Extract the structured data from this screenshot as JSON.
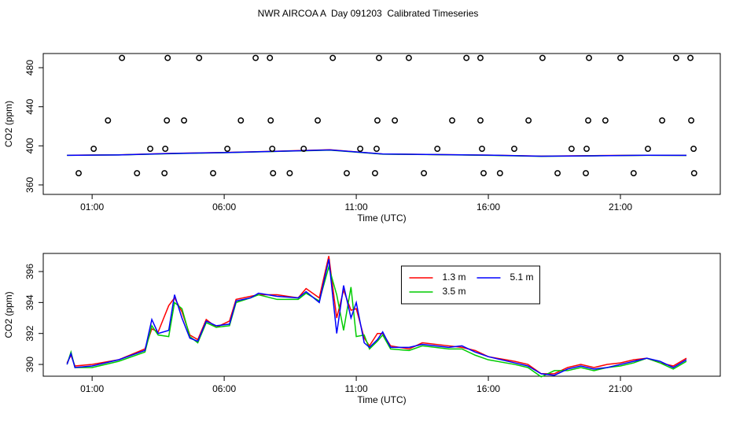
{
  "title": "NWR AIRCOA A  Day 091203  Calibrated Timeseries",
  "chart_data": [
    {
      "type": "scatter",
      "xlabel": "Time (UTC)",
      "ylabel": "CO2 (ppm)",
      "xlim": [
        -0.85,
        24.78
      ],
      "xticks": [
        {
          "value": 1,
          "label": "01:00"
        },
        {
          "value": 6,
          "label": "06:00"
        },
        {
          "value": 11,
          "label": "11:00"
        },
        {
          "value": 16,
          "label": "16:00"
        },
        {
          "value": 21,
          "label": "21:00"
        }
      ],
      "ylim": [
        350.3,
        494.5
      ],
      "yticks": [
        360,
        400,
        440,
        480
      ],
      "color": "#000000",
      "x": [
        2.13,
        3.86,
        5.05,
        7.19,
        7.73,
        10.11,
        11.86,
        12.99,
        15.17,
        15.7,
        18.05,
        19.81,
        21.0,
        23.11,
        23.65,
        1.6,
        3.83,
        4.48,
        6.63,
        7.76,
        9.54,
        11.8,
        12.46,
        14.63,
        15.7,
        17.52,
        19.78,
        20.43,
        22.58,
        23.68,
        1.06,
        3.2,
        3.77,
        6.12,
        7.82,
        9.01,
        11.15,
        11.77,
        14.07,
        15.76,
        16.98,
        19.15,
        19.72,
        22.04,
        23.77,
        0.49,
        2.7,
        3.74,
        5.58,
        7.85,
        8.48,
        10.64,
        11.71,
        13.56,
        15.82,
        16.44,
        18.62,
        19.69,
        21.5,
        23.79
      ],
      "values": [
        490,
        490,
        490,
        490,
        490,
        490,
        490,
        490,
        490,
        490,
        490,
        490,
        490,
        490,
        490,
        426,
        426,
        426,
        426,
        426,
        426,
        426,
        426,
        426,
        426,
        426,
        426,
        426,
        426,
        426,
        397,
        397,
        397,
        397,
        397,
        397,
        397,
        397,
        397,
        397,
        397,
        397,
        397,
        397,
        397,
        372,
        372,
        372,
        372,
        372,
        372,
        372,
        372,
        372,
        372,
        372,
        372,
        372,
        372,
        372
      ],
      "series": [
        {
          "color": "#ff0000",
          "x": [
            0.05,
            2,
            4,
            6,
            8,
            10,
            12,
            14,
            16,
            18,
            20,
            22,
            23.5
          ],
          "values": [
            390.4,
            390.8,
            392.3,
            393.2,
            394.5,
            396.0,
            391.6,
            391.1,
            390.5,
            389.5,
            390.0,
            390.4,
            390.3
          ]
        },
        {
          "color": "#00cc00",
          "x": [
            0.05,
            2,
            4,
            6,
            8,
            10,
            12,
            14,
            16,
            18,
            20,
            22,
            23.5
          ],
          "values": [
            390.3,
            390.7,
            392.0,
            393.0,
            394.3,
            395.6,
            391.5,
            391.0,
            390.3,
            389.3,
            389.8,
            390.3,
            390.2
          ]
        },
        {
          "color": "#0000ff",
          "x": [
            0.05,
            2,
            4,
            6,
            8,
            10,
            12,
            14,
            16,
            18,
            20,
            22,
            23.5
          ],
          "values": [
            390.3,
            390.7,
            392.2,
            393.1,
            394.4,
            395.8,
            391.7,
            391.1,
            390.5,
            389.4,
            389.8,
            390.4,
            390.3
          ]
        }
      ]
    },
    {
      "type": "line",
      "xlabel": "Time (UTC)",
      "ylabel": "CO2 (ppm)",
      "xlim": [
        -0.85,
        24.78
      ],
      "xticks": [
        {
          "value": 1,
          "label": "01:00"
        },
        {
          "value": 6,
          "label": "06:00"
        },
        {
          "value": 11,
          "label": "11:00"
        },
        {
          "value": 16,
          "label": "16:00"
        },
        {
          "value": 21,
          "label": "21:00"
        }
      ],
      "ylim": [
        389.24,
        397.17
      ],
      "yticks": [
        390,
        392,
        394,
        396
      ],
      "legend": "top",
      "x": [
        0.05,
        0.2,
        0.35,
        1.0,
        2.0,
        3.0,
        3.26,
        3.5,
        3.9,
        4.12,
        4.4,
        4.7,
        5.0,
        5.32,
        5.7,
        6.2,
        6.45,
        7.0,
        7.3,
        8.0,
        8.8,
        9.1,
        9.6,
        9.96,
        10.26,
        10.52,
        10.8,
        11.0,
        11.3,
        11.5,
        11.8,
        12.0,
        12.3,
        13.0,
        13.5,
        14.5,
        15.0,
        15.5,
        16.0,
        17.0,
        17.5,
        18.0,
        18.5,
        19.0,
        19.5,
        20.0,
        20.5,
        21.0,
        21.5,
        22.0,
        22.5,
        23.0,
        23.5
      ],
      "series": [
        {
          "name": "1.3 m",
          "color": "#ff0000",
          "values": [
            390.1,
            390.6,
            389.9,
            390.0,
            390.3,
            391.0,
            392.3,
            392.1,
            393.8,
            394.3,
            393.4,
            391.9,
            391.6,
            392.9,
            392.4,
            392.8,
            394.2,
            394.4,
            394.5,
            394.5,
            394.3,
            394.9,
            394.3,
            397.0,
            393.0,
            394.8,
            393.5,
            393.6,
            391.7,
            391.2,
            392.0,
            392.0,
            391.2,
            391.0,
            391.4,
            391.2,
            391.1,
            390.9,
            390.5,
            390.2,
            390.0,
            389.4,
            389.4,
            389.8,
            390.0,
            389.8,
            390.0,
            390.1,
            390.3,
            390.4,
            390.1,
            389.9,
            390.4
          ]
        },
        {
          "name": "3.5 m",
          "color": "#00cc00",
          "values": [
            390.0,
            390.8,
            389.8,
            389.8,
            390.2,
            390.8,
            392.5,
            391.9,
            391.8,
            394.0,
            393.6,
            391.8,
            391.4,
            392.7,
            392.4,
            392.5,
            394.0,
            394.3,
            394.5,
            394.2,
            394.2,
            394.6,
            394.1,
            396.3,
            394.5,
            392.2,
            395.0,
            391.8,
            391.9,
            391.0,
            391.5,
            391.9,
            391.0,
            390.9,
            391.2,
            391.0,
            391.0,
            390.6,
            390.3,
            390.0,
            389.8,
            389.2,
            389.6,
            389.6,
            389.8,
            389.6,
            389.8,
            389.9,
            390.1,
            390.4,
            390.1,
            389.7,
            390.2
          ]
        },
        {
          "name": "5.1 m",
          "color": "#0000ff",
          "values": [
            390.0,
            390.7,
            389.8,
            389.9,
            390.3,
            390.9,
            392.9,
            392.0,
            392.2,
            394.5,
            393.0,
            391.7,
            391.5,
            392.8,
            392.5,
            392.6,
            394.1,
            394.3,
            394.6,
            394.4,
            394.3,
            394.7,
            394.0,
            396.8,
            392.0,
            395.1,
            393.0,
            394.0,
            391.4,
            391.1,
            391.6,
            392.1,
            391.1,
            391.1,
            391.3,
            391.1,
            391.2,
            390.8,
            390.5,
            390.1,
            389.9,
            389.4,
            389.3,
            389.7,
            389.9,
            389.7,
            389.8,
            390.0,
            390.2,
            390.4,
            390.2,
            389.8,
            390.3
          ]
        }
      ]
    }
  ]
}
